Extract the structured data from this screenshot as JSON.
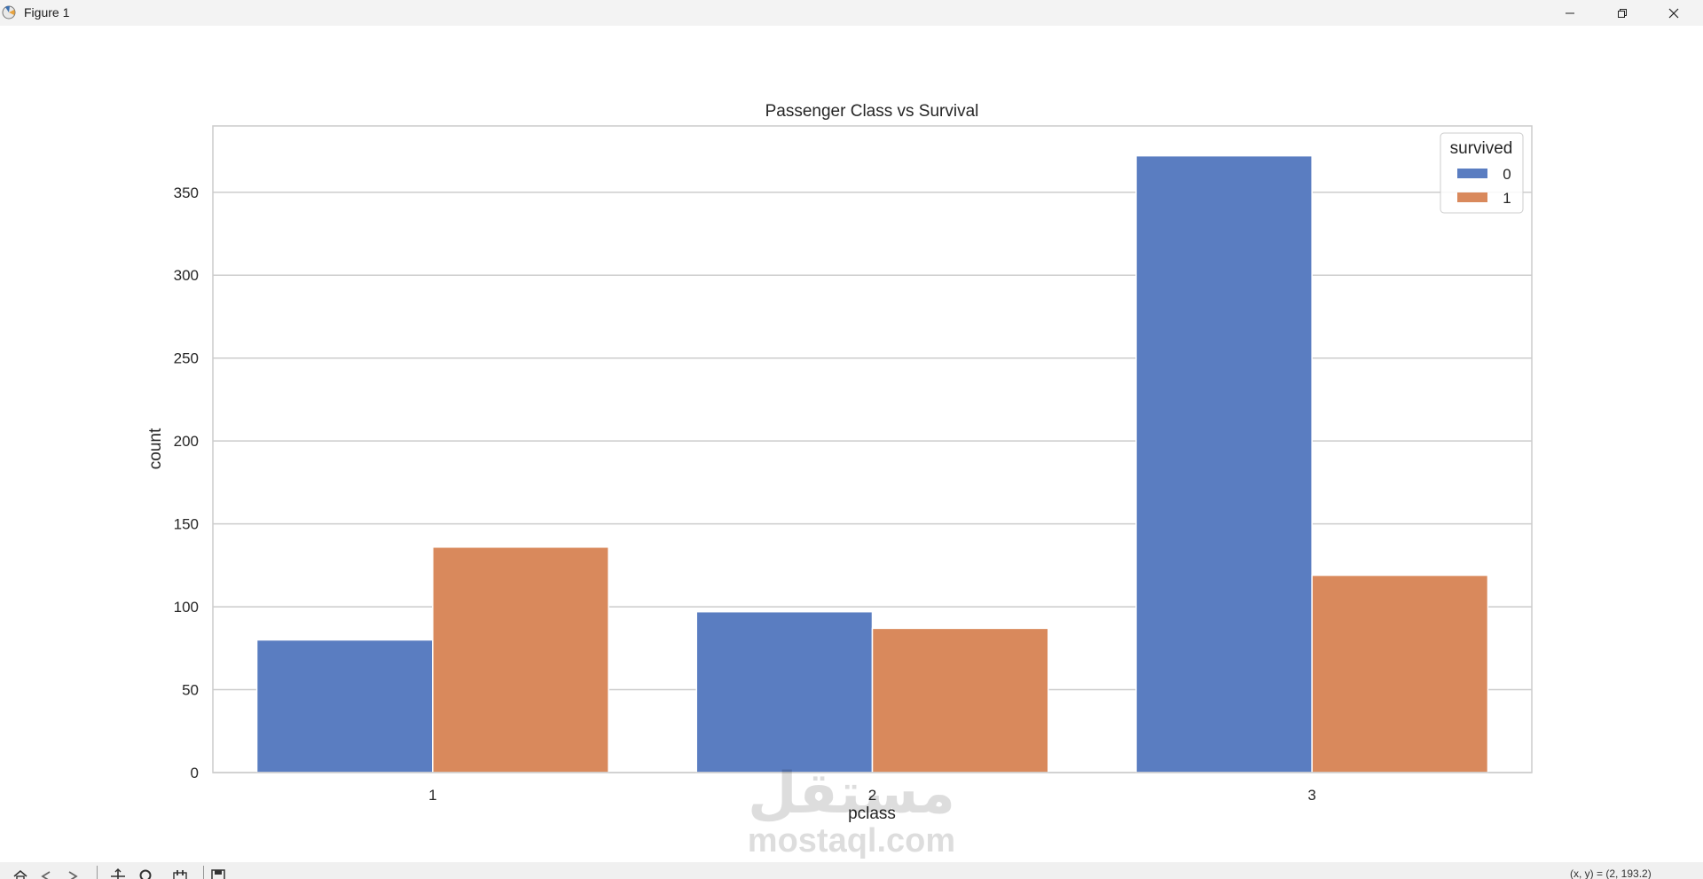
{
  "window": {
    "title": "Figure 1",
    "controls": [
      "minimize-icon",
      "restore-icon",
      "close-icon"
    ]
  },
  "chart_data": {
    "type": "bar",
    "title": "Passenger Class vs Survival",
    "xlabel": "pclass",
    "ylabel": "count",
    "categories": [
      "1",
      "2",
      "3"
    ],
    "series": [
      {
        "name": "0",
        "color": "#5a7dc1",
        "values": [
          80,
          97,
          372
        ]
      },
      {
        "name": "1",
        "color": "#d9895c",
        "values": [
          136,
          87,
          119
        ]
      }
    ],
    "ylim": [
      0,
      390
    ],
    "yticks": [
      0,
      50,
      100,
      150,
      200,
      250,
      300,
      350
    ],
    "grid": true,
    "legend": {
      "title": "survived",
      "position": "top-right"
    }
  },
  "toolbar": {
    "icons": [
      "home-icon",
      "back-icon",
      "forward-icon",
      "pan-icon",
      "zoom-icon",
      "configure-icon",
      "save-icon"
    ],
    "coords_text": "(x, y) = (2, 193.2)"
  },
  "watermark": {
    "arabic": "مستقل",
    "latin": "mostaql.com"
  }
}
